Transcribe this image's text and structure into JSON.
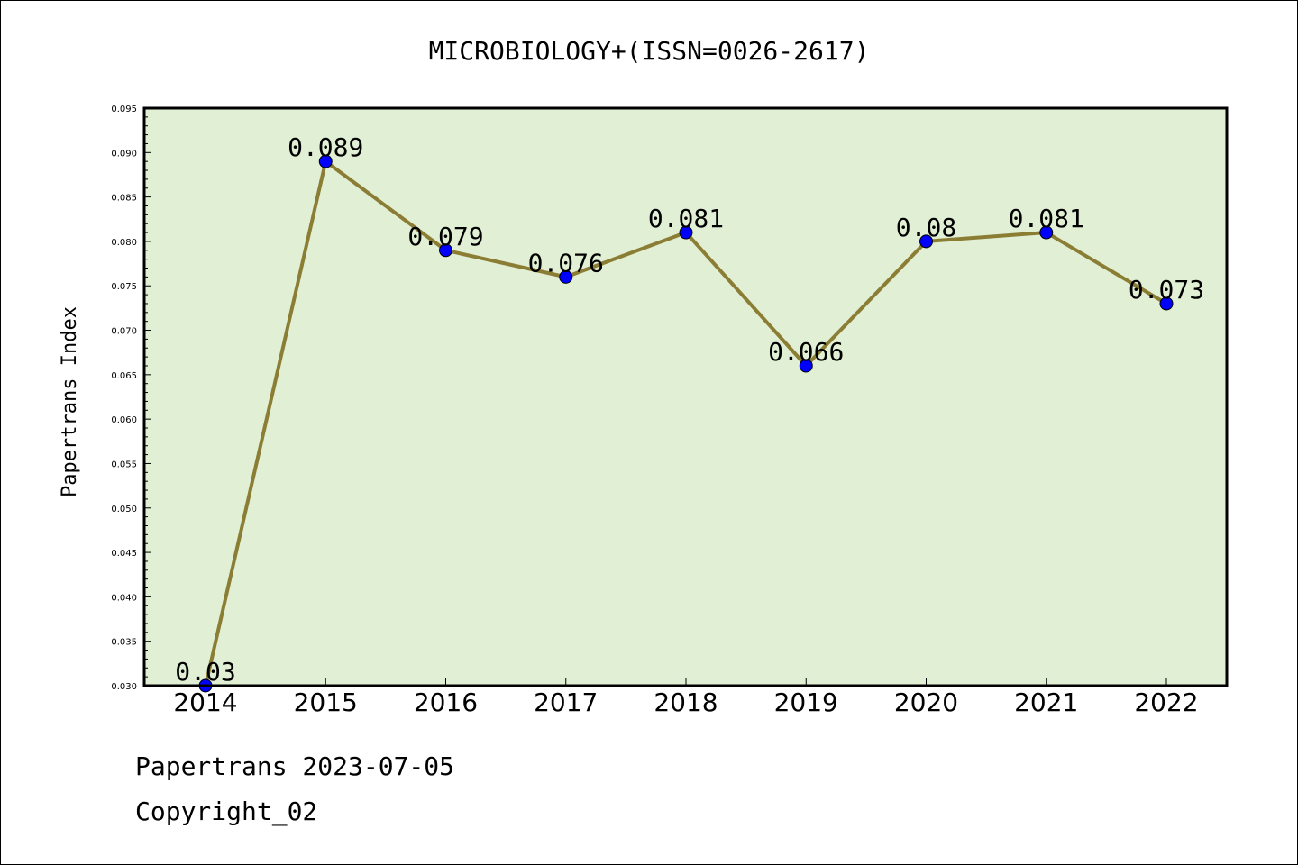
{
  "chart_data": {
    "type": "line",
    "title": "MICROBIOLOGY+(ISSN=0026-2617)",
    "xlabel": "",
    "ylabel": "Papertrans Index",
    "categories": [
      "2014",
      "2015",
      "2016",
      "2017",
      "2018",
      "2019",
      "2020",
      "2021",
      "2022"
    ],
    "series": [
      {
        "values": [
          0.03,
          0.089,
          0.079,
          0.076,
          0.081,
          0.066,
          0.08,
          0.081,
          0.073
        ]
      }
    ],
    "data_labels": [
      "0.03",
      "0.089",
      "0.079",
      "0.076",
      "0.081",
      "0.066",
      "0.08",
      "0.081",
      "0.073"
    ],
    "ylim": [
      0.03,
      0.095
    ],
    "yticks": [
      "0.030",
      "0.035",
      "0.040",
      "0.045",
      "0.050",
      "0.055",
      "0.060",
      "0.065",
      "0.070",
      "0.075",
      "0.080",
      "0.085",
      "0.090",
      "0.095"
    ],
    "grid": false,
    "colors": {
      "line": "#8b7d34",
      "marker": "#0000ff",
      "plot_background": "#e1efd4"
    }
  },
  "footer": {
    "source": "Papertrans 2023-07-05",
    "copyright": "Copyright_02"
  }
}
